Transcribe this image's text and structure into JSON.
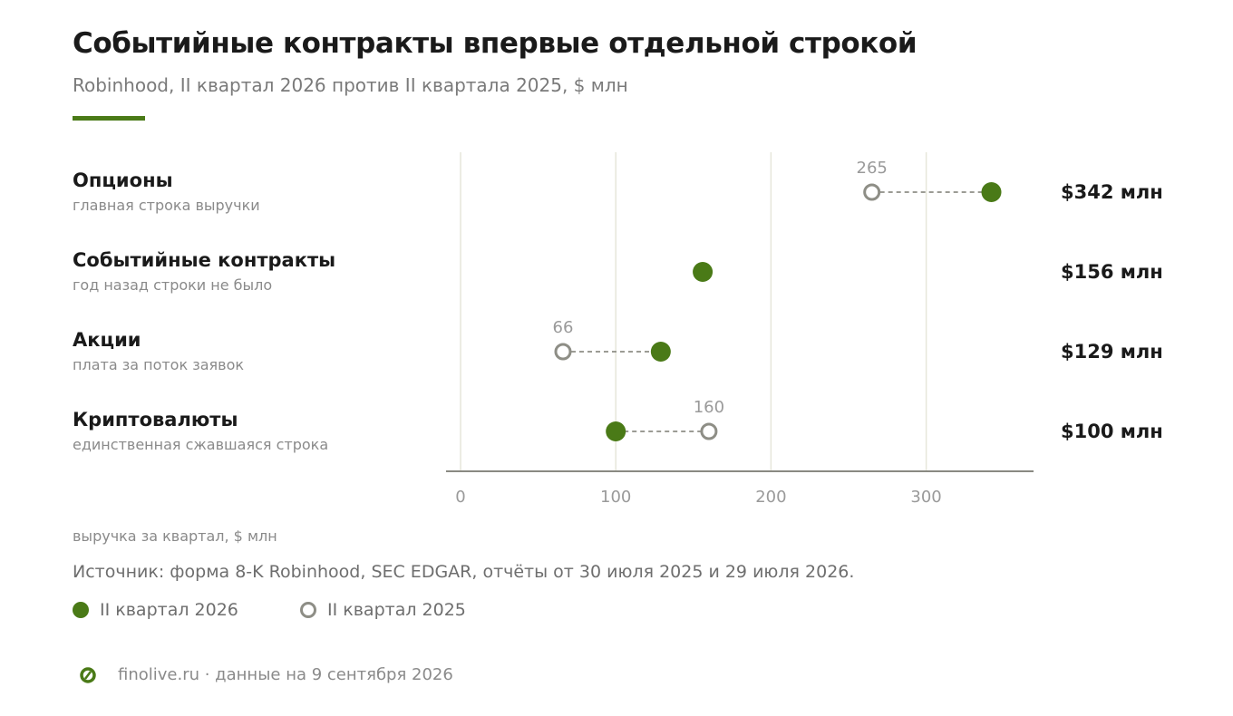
{
  "header": {
    "title": "Событийные контракты впервые отдельной строкой",
    "subtitle": "Robinhood, II квартал 2026 против II квартала 2025, $ млн"
  },
  "colors": {
    "accent": "#4a7a17",
    "prior": "#8e8e86",
    "grid": "#e6e6da",
    "axis": "#8a8a82"
  },
  "chart_data": {
    "type": "dumbbell",
    "title": "Событийные контракты впервые отдельной строкой",
    "subtitle": "Robinhood, II квартал 2026 против II квартала 2025, $ млн",
    "xlabel": "выручка за квартал, $ млн",
    "xlim": [
      0,
      370
    ],
    "xticks": [
      0,
      100,
      200,
      300
    ],
    "grid": true,
    "legend_placement": "bottom-left",
    "series": [
      {
        "name": "II квартал 2026",
        "marker": "filled"
      },
      {
        "name": "II квартал 2025",
        "marker": "hollow"
      }
    ],
    "rows": [
      {
        "label": "Опционы",
        "note": "главная строка выручки",
        "q2_2026": 342,
        "q2_2025": 265,
        "value_label": "$342 млн"
      },
      {
        "label": "Событийные контракты",
        "note": "год назад строки не было",
        "q2_2026": 156,
        "q2_2025": null,
        "value_label": "$156 млн"
      },
      {
        "label": "Акции",
        "note": "плата за поток заявок",
        "q2_2026": 129,
        "q2_2025": 66,
        "value_label": "$129 млн"
      },
      {
        "label": "Криптовалюты",
        "note": "единственная сжавшаяся строка",
        "q2_2026": 100,
        "q2_2025": 160,
        "value_label": "$100 млн"
      }
    ]
  },
  "source": "Источник: форма 8-K Robinhood, SEC EDGAR, отчёты от 30 июля 2025 и 29 июля 2026.",
  "legend": {
    "current": "II квартал 2026",
    "prior": "II квартал 2025"
  },
  "footer": {
    "icon": "finolive-logo-icon",
    "text": "finolive.ru · данные на 9 сентября 2026"
  }
}
